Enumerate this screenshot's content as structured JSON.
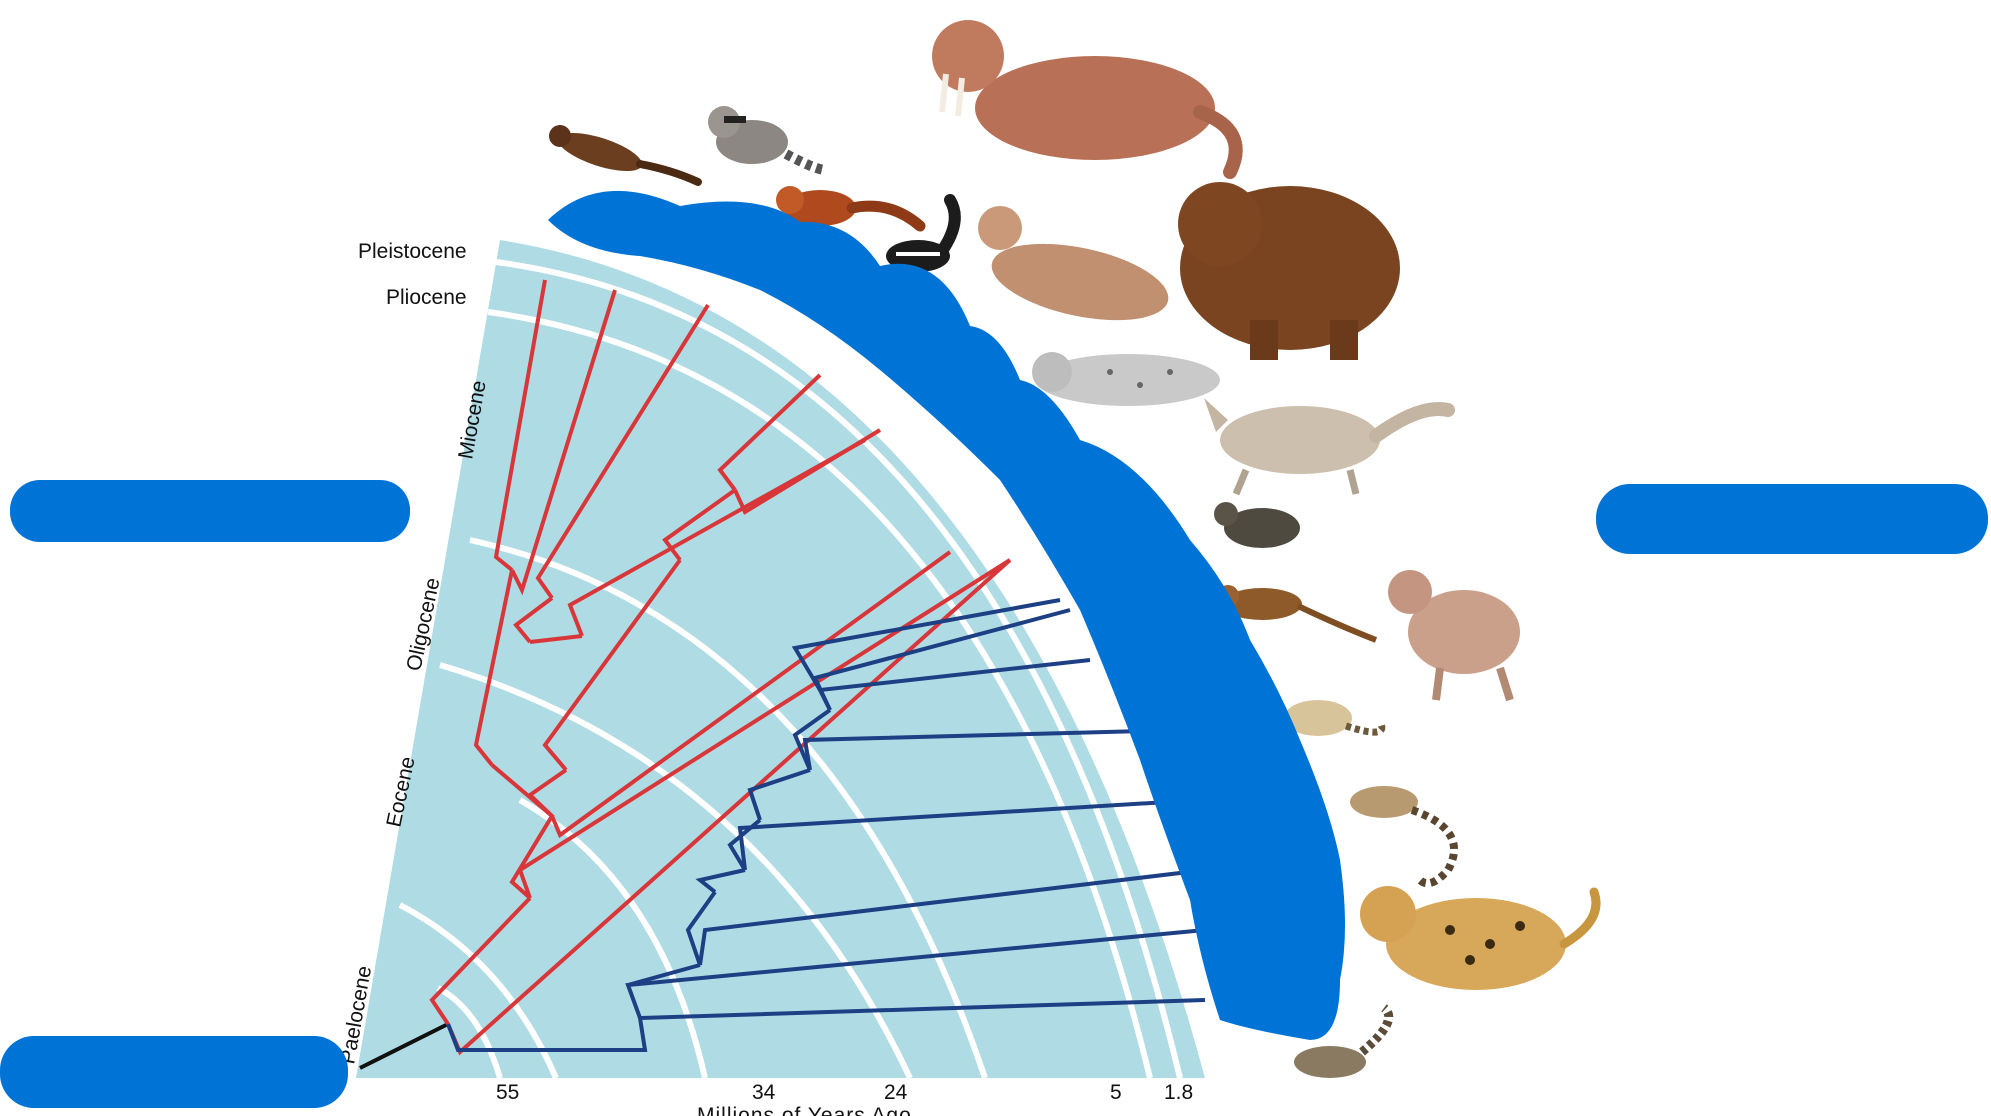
{
  "epochs": [
    "Pleistocene",
    "Pliocene",
    "Miocene",
    "Oligocene",
    "Eocene",
    "Paelocene"
  ],
  "axis": {
    "ticks": [
      "55",
      "34",
      "24",
      "5",
      "1.8"
    ],
    "title": "Millions of Years Ago"
  },
  "colors": {
    "background_wedge": "#aedbe4",
    "epoch_bands": "#ffffff",
    "clade_red": "#d9363a",
    "clade_blue": "#1d3f84",
    "root_stem": "#111111",
    "redaction": "#0073d6"
  },
  "animals": [
    "weasel-icon",
    "raccoon-icon",
    "red-panda-icon",
    "skunk-icon",
    "walrus-icon",
    "sea-lion-icon",
    "seal-icon",
    "bear-icon",
    "wolf-icon",
    "mongoose-icon",
    "fossa-icon",
    "hyena-icon",
    "linsang-icon",
    "genet-icon",
    "jaguar-icon",
    "civet-icon"
  ]
}
